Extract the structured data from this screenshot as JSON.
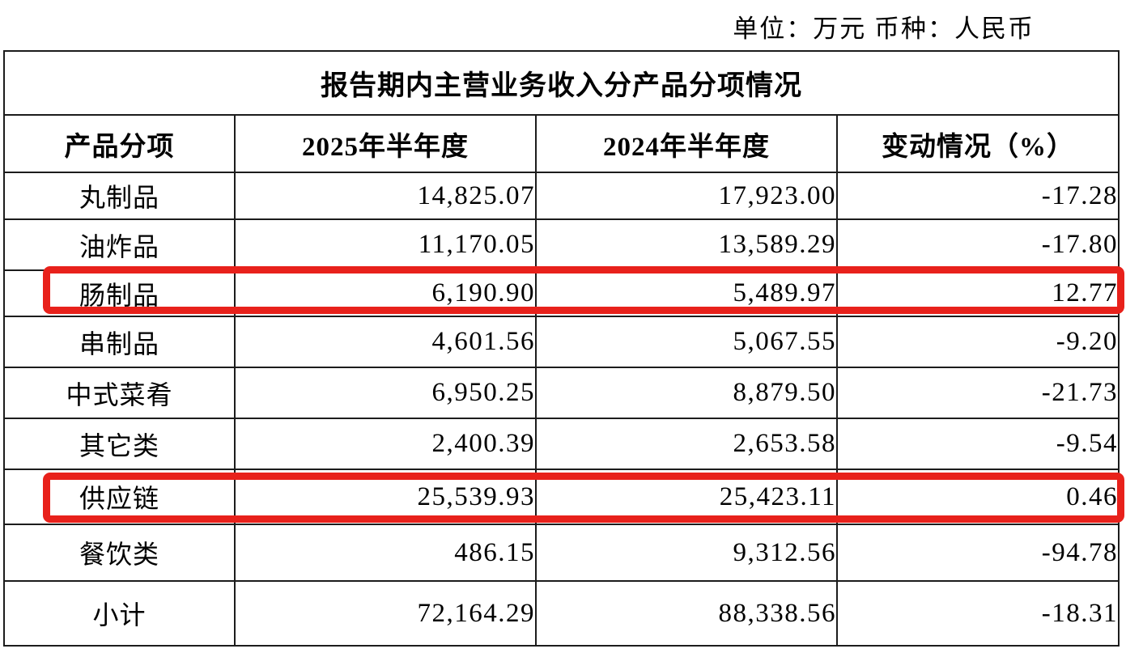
{
  "page": {
    "unit_line": "单位：万元 币种：人民币"
  },
  "table": {
    "title": "报告期内主营业务收入分产品分项情况",
    "columns": [
      "产品分项",
      "2025年半年度",
      "2024年半年度",
      "变动情况（%）"
    ],
    "rows": [
      {
        "product": "丸制品",
        "h1_2025": "14,825.07",
        "h1_2024": "17,923.00",
        "change_pct": "-17.28"
      },
      {
        "product": "油炸品",
        "h1_2025": "11,170.05",
        "h1_2024": "13,589.29",
        "change_pct": "-17.80"
      },
      {
        "product": "肠制品",
        "h1_2025": "6,190.90",
        "h1_2024": "5,489.97",
        "change_pct": "12.77"
      },
      {
        "product": "串制品",
        "h1_2025": "4,601.56",
        "h1_2024": "5,067.55",
        "change_pct": "-9.20"
      },
      {
        "product": "中式菜肴",
        "h1_2025": "6,950.25",
        "h1_2024": "8,879.50",
        "change_pct": "-21.73"
      },
      {
        "product": "其它类",
        "h1_2025": "2,400.39",
        "h1_2024": "2,653.58",
        "change_pct": "-9.54"
      },
      {
        "product": "供应链",
        "h1_2025": "25,539.93",
        "h1_2024": "25,423.11",
        "change_pct": "0.46"
      },
      {
        "product": "餐饮类",
        "h1_2025": "486.15",
        "h1_2024": "9,312.56",
        "change_pct": "-94.78"
      },
      {
        "product": "小计",
        "h1_2025": "72,164.29",
        "h1_2024": "88,338.56",
        "change_pct": "-18.31"
      }
    ]
  },
  "annotations": {
    "highlight_color": "#e8211b",
    "highlighted_rows": [
      "肠制品",
      "供应链"
    ]
  }
}
